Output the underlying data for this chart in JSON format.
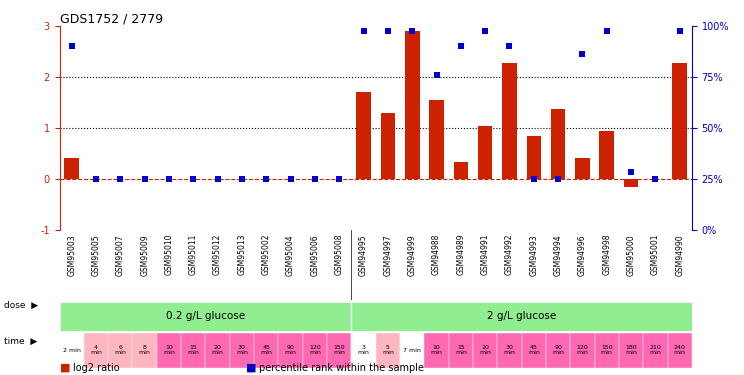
{
  "title": "GDS1752 / 2779",
  "samples": [
    "GSM95003",
    "GSM95005",
    "GSM95007",
    "GSM95009",
    "GSM95010",
    "GSM95011",
    "GSM95012",
    "GSM95013",
    "GSM95002",
    "GSM95004",
    "GSM95006",
    "GSM95008",
    "GSM94995",
    "GSM94997",
    "GSM94999",
    "GSM94988",
    "GSM94989",
    "GSM94991",
    "GSM94992",
    "GSM94993",
    "GSM94994",
    "GSM94996",
    "GSM94998",
    "GSM95000",
    "GSM95001",
    "GSM94990"
  ],
  "log2_ratio": [
    0.42,
    0.0,
    0.0,
    0.0,
    0.0,
    0.0,
    0.0,
    0.0,
    0.0,
    0.0,
    0.0,
    0.0,
    1.72,
    1.3,
    2.9,
    1.55,
    0.35,
    1.05,
    2.28,
    0.85,
    1.38,
    0.42,
    0.95,
    -0.15,
    0.0,
    2.28
  ],
  "percentile_rank": [
    2.62,
    0.0,
    0.0,
    0.0,
    0.0,
    0.0,
    0.0,
    0.0,
    0.0,
    0.0,
    0.0,
    0.0,
    2.9,
    2.9,
    2.9,
    2.05,
    2.62,
    2.9,
    2.62,
    0.0,
    0.0,
    2.45,
    2.9,
    0.15,
    0.0,
    2.9
  ],
  "dose_groups": [
    {
      "label": "0.2 g/L glucose",
      "start": 0,
      "end": 12,
      "color": "#90EE90"
    },
    {
      "label": "2 g/L glucose",
      "start": 12,
      "end": 26,
      "color": "#90EE90"
    }
  ],
  "time_labels": [
    "2 min",
    "4\nmin",
    "6\nmin",
    "8\nmin",
    "10\nmin",
    "15\nmin",
    "20\nmin",
    "30\nmin",
    "45\nmin",
    "90\nmin",
    "120\nmin",
    "150\nmin",
    "3\nmin",
    "5\nmin",
    "7 min",
    "10\nmin",
    "15\nmin",
    "20\nmin",
    "30\nmin",
    "45\nmin",
    "90\nmin",
    "120\nmin",
    "150\nmin",
    "180\nmin",
    "210\nmin",
    "240\nmin"
  ],
  "time_colors": [
    "#FFFFFF",
    "#FFB6C1",
    "#FFB6C1",
    "#FFB6C1",
    "#FF69B4",
    "#FF69B4",
    "#FF69B4",
    "#FF69B4",
    "#FF69B4",
    "#FF69B4",
    "#FF69B4",
    "#FF69B4",
    "#FFFFFF",
    "#FFB6C1",
    "#FFFFFF",
    "#FF69B4",
    "#FF69B4",
    "#FF69B4",
    "#FF69B4",
    "#FF69B4",
    "#FF69B4",
    "#FF69B4",
    "#FF69B4",
    "#FF69B4",
    "#FF69B4",
    "#FF69B4"
  ],
  "bar_color": "#CC2200",
  "dot_color": "#0000CC",
  "ylim_left": [
    -1,
    3
  ],
  "ylim_right": [
    0,
    100
  ],
  "yticks_left": [
    -1,
    0,
    1,
    2,
    3
  ],
  "yticks_right": [
    0,
    25,
    50,
    75,
    100
  ],
  "hlines": [
    0,
    1,
    2
  ],
  "hline_styles": [
    "dashed_red",
    "dotted_black",
    "dotted_black"
  ],
  "background_color": "#FFFFFF",
  "legend_items": [
    {
      "color": "#CC2200",
      "label": "log2 ratio"
    },
    {
      "color": "#0000CC",
      "label": "percentile rank within the sample"
    }
  ]
}
